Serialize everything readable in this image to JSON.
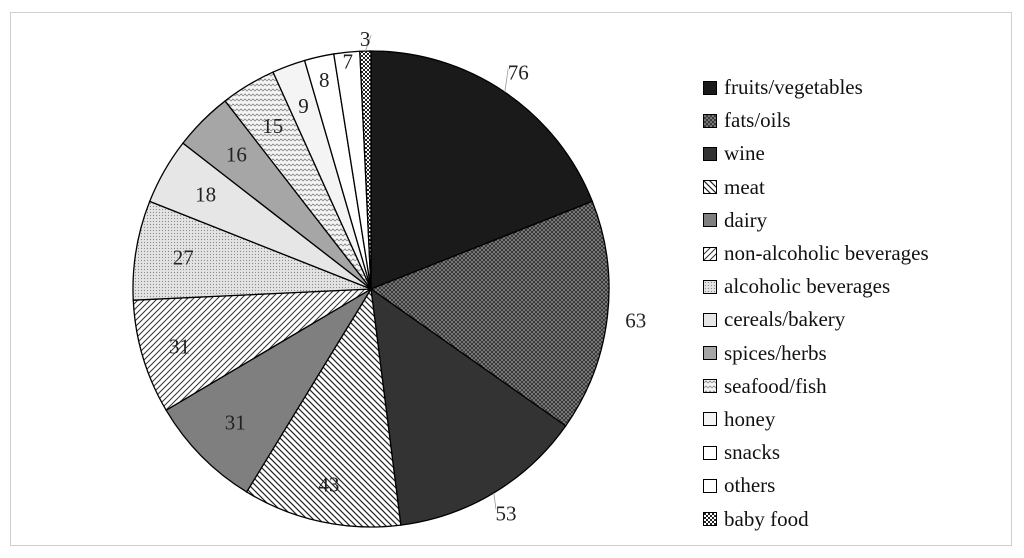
{
  "chart_data": {
    "type": "pie",
    "start": "12-o'clock, clockwise",
    "categories": [
      "fruits/vegetables",
      "fats/oils",
      "wine",
      "meat",
      "dairy",
      "non-alcoholic beverages",
      "alcoholic beverages",
      "cereals/bakery",
      "spices/herbs",
      "seafood/fish",
      "honey",
      "snacks",
      "others",
      "baby food"
    ],
    "values": [
      76,
      63,
      53,
      43,
      31,
      31,
      27,
      18,
      16,
      15,
      9,
      8,
      7,
      3
    ],
    "fills": [
      {
        "pattern": "solid",
        "color": "#1a1a1a"
      },
      {
        "pattern": "dots",
        "color": "#3a3a3a"
      },
      {
        "pattern": "solid",
        "color": "#333333"
      },
      {
        "pattern": "diag-down",
        "color": "#ffffff"
      },
      {
        "pattern": "solid",
        "color": "#7f7f7f"
      },
      {
        "pattern": "diag-up",
        "color": "#ffffff"
      },
      {
        "pattern": "fine-dots",
        "color": "#d9d9d9"
      },
      {
        "pattern": "solid",
        "color": "#e6e6e6"
      },
      {
        "pattern": "solid",
        "color": "#a6a6a6"
      },
      {
        "pattern": "zigzag",
        "color": "#f2f2f2"
      },
      {
        "pattern": "solid",
        "color": "#f4f4f4"
      },
      {
        "pattern": "solid",
        "color": "#ffffff"
      },
      {
        "pattern": "solid",
        "color": "#ffffff"
      },
      {
        "pattern": "checker",
        "color": "#ffffff"
      }
    ],
    "legend_position": "right"
  }
}
